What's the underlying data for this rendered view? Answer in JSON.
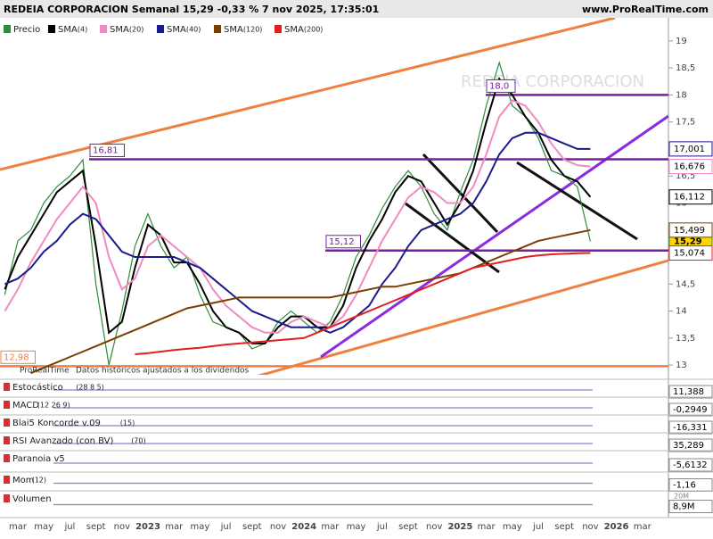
{
  "header": {
    "title": "REDEIA CORPORACION Semanal 15,29 -0,33 % 7 nov 2025, 17:35:01",
    "site": "www.ProRealTime.com"
  },
  "chart_data": {
    "type": "line",
    "watermark": "REDEIA CORPORACION",
    "source": "ProRealTime",
    "note": "Datos históricos ajustados a los dividendos",
    "categories": [
      null,
      "mar",
      null,
      "may",
      null,
      "jul",
      null,
      "sept",
      null,
      "nov",
      null,
      "2023",
      null,
      "mar",
      null,
      "may",
      null,
      "jul",
      null,
      "sept",
      null,
      "nov",
      null,
      "2024",
      null,
      "mar",
      null,
      "may",
      null,
      "jul",
      null,
      "sept",
      null,
      "nov",
      null,
      "2025",
      null,
      "mar",
      null,
      "may",
      null,
      "jul",
      null,
      "sept",
      null,
      "nov",
      null,
      "2026",
      null,
      "mar"
    ],
    "ylim": [
      12.82,
      19.13
    ],
    "yticks": [
      13,
      {
        "value": 13.5,
        "label": "13,5"
      },
      14,
      {
        "value": 14.5,
        "label": "14,5"
      },
      15,
      {
        "value": 15.5,
        "label": "15,5"
      },
      16,
      {
        "value": 16.5,
        "label": "16,5"
      },
      17,
      {
        "value": 17.5,
        "label": "17,5"
      },
      18,
      {
        "value": 18.5,
        "label": "18,5"
      },
      19
    ],
    "series": [
      {
        "name": "Precio",
        "color": "#2e8b3a",
        "last_label": "15,29",
        "values": [
          14.3,
          15.3,
          15.5,
          16.0,
          16.3,
          16.5,
          16.8,
          14.5,
          13.0,
          14.0,
          15.2,
          15.8,
          15.2,
          14.8,
          15.0,
          14.3,
          13.8,
          13.7,
          13.6,
          13.3,
          13.4,
          13.8,
          14.0,
          13.8,
          13.6,
          13.8,
          14.3,
          15.0,
          15.4,
          15.9,
          16.3,
          16.6,
          16.3,
          15.8,
          15.5,
          16.2,
          16.8,
          17.8,
          18.6,
          17.8,
          17.6,
          17.2,
          16.6,
          16.5,
          16.3,
          15.29,
          null,
          null,
          null,
          null
        ]
      },
      {
        "name": "SMA",
        "param": "(4)",
        "color": "#000000",
        "last_label": "16,112",
        "values": [
          14.4,
          15.0,
          15.4,
          15.8,
          16.2,
          16.4,
          16.6,
          15.2,
          13.6,
          13.8,
          14.8,
          15.6,
          15.4,
          14.9,
          14.9,
          14.5,
          14.0,
          13.7,
          13.6,
          13.4,
          13.4,
          13.7,
          13.9,
          13.9,
          13.7,
          13.7,
          14.1,
          14.8,
          15.3,
          15.7,
          16.2,
          16.5,
          16.4,
          16.0,
          15.6,
          16.0,
          16.6,
          17.5,
          18.3,
          18.0,
          17.6,
          17.3,
          16.8,
          16.5,
          16.4,
          16.112,
          null,
          null,
          null,
          null
        ]
      },
      {
        "name": "SMA",
        "param": "(20)",
        "color": "#f08ac0",
        "last_label": "16,676",
        "values": [
          14.0,
          14.4,
          14.9,
          15.3,
          15.7,
          16.0,
          16.3,
          16.0,
          15.0,
          14.4,
          14.6,
          15.2,
          15.4,
          15.2,
          15.0,
          14.8,
          14.4,
          14.1,
          13.9,
          13.7,
          13.6,
          13.6,
          13.8,
          13.9,
          13.8,
          13.7,
          13.9,
          14.3,
          14.8,
          15.3,
          15.7,
          16.1,
          16.3,
          16.2,
          16.0,
          16.0,
          16.3,
          16.9,
          17.6,
          17.9,
          17.8,
          17.5,
          17.1,
          16.8,
          16.7,
          16.676,
          null,
          null,
          null,
          null
        ]
      },
      {
        "name": "SMA",
        "param": "(40)",
        "color": "#1a1a8c",
        "last_label": "17,001",
        "values": [
          14.5,
          14.6,
          14.8,
          15.1,
          15.3,
          15.6,
          15.8,
          15.7,
          15.4,
          15.1,
          15.0,
          15.0,
          15.0,
          15.0,
          14.9,
          14.8,
          14.6,
          14.4,
          14.2,
          14.0,
          13.9,
          13.8,
          13.7,
          13.7,
          13.7,
          13.6,
          13.7,
          13.9,
          14.1,
          14.5,
          14.8,
          15.2,
          15.5,
          15.6,
          15.7,
          15.8,
          16.0,
          16.4,
          16.9,
          17.2,
          17.3,
          17.3,
          17.2,
          17.1,
          17.0,
          17.001,
          null,
          null,
          null,
          null
        ]
      },
      {
        "name": "SMA",
        "param": "(120)",
        "color": "#7a3f00",
        "last_label": "15,499",
        "values": [
          null,
          null,
          12.85,
          12.95,
          13.05,
          13.15,
          13.25,
          13.35,
          13.45,
          13.55,
          13.65,
          13.75,
          13.85,
          13.95,
          14.05,
          14.1,
          14.15,
          14.2,
          14.25,
          14.25,
          14.25,
          14.25,
          14.25,
          14.25,
          14.25,
          14.25,
          14.3,
          14.35,
          14.4,
          14.45,
          14.45,
          14.5,
          14.55,
          14.6,
          14.65,
          14.7,
          14.8,
          14.9,
          15.0,
          15.1,
          15.2,
          15.3,
          15.35,
          15.4,
          15.45,
          15.499,
          null,
          null,
          null,
          null
        ]
      },
      {
        "name": "SMA",
        "param": "(200)",
        "color": "#e02020",
        "last_label": "15,074",
        "values": [
          null,
          null,
          null,
          null,
          null,
          null,
          null,
          null,
          null,
          null,
          13.2,
          13.22,
          13.25,
          13.28,
          13.3,
          13.32,
          13.35,
          13.38,
          13.4,
          13.42,
          13.44,
          13.46,
          13.48,
          13.5,
          13.6,
          13.7,
          13.8,
          13.9,
          14.0,
          14.1,
          14.2,
          14.3,
          14.4,
          14.5,
          14.6,
          14.7,
          14.8,
          14.85,
          14.9,
          14.95,
          15.0,
          15.03,
          15.05,
          15.06,
          15.07,
          15.074,
          null,
          null,
          null,
          null
        ]
      }
    ],
    "levels": [
      {
        "value": 16.81,
        "label": "16,81",
        "color": "#7a1fa0"
      },
      {
        "value": 18.0,
        "label": "18,0",
        "color": "#7a1fa0"
      },
      {
        "value": 15.12,
        "label": "15,12",
        "color": "#7a1fa0"
      },
      {
        "value": 12.98,
        "label": "12,98",
        "color": "#f08040"
      }
    ],
    "indicators": [
      {
        "name": "Estocástico",
        "param": "(28 8 5)",
        "last": "11,388"
      },
      {
        "name": "MACD",
        "param": "(12 26 9)",
        "last": "-0,2949"
      },
      {
        "name": "Blai5 Koncorde v.09",
        "param": "(15)",
        "last": "-16,331"
      },
      {
        "name": "RSI Avanzado (con BV)",
        "param": "(70)",
        "last": "35,289"
      },
      {
        "name": "Paranoia v5",
        "param": null,
        "last": "-5,6132"
      },
      {
        "name": "Mom",
        "param": "(12)",
        "last": "-1,16"
      },
      {
        "name": "Volumen",
        "param": null,
        "last": "8,9M",
        "axis": "20M"
      }
    ]
  }
}
